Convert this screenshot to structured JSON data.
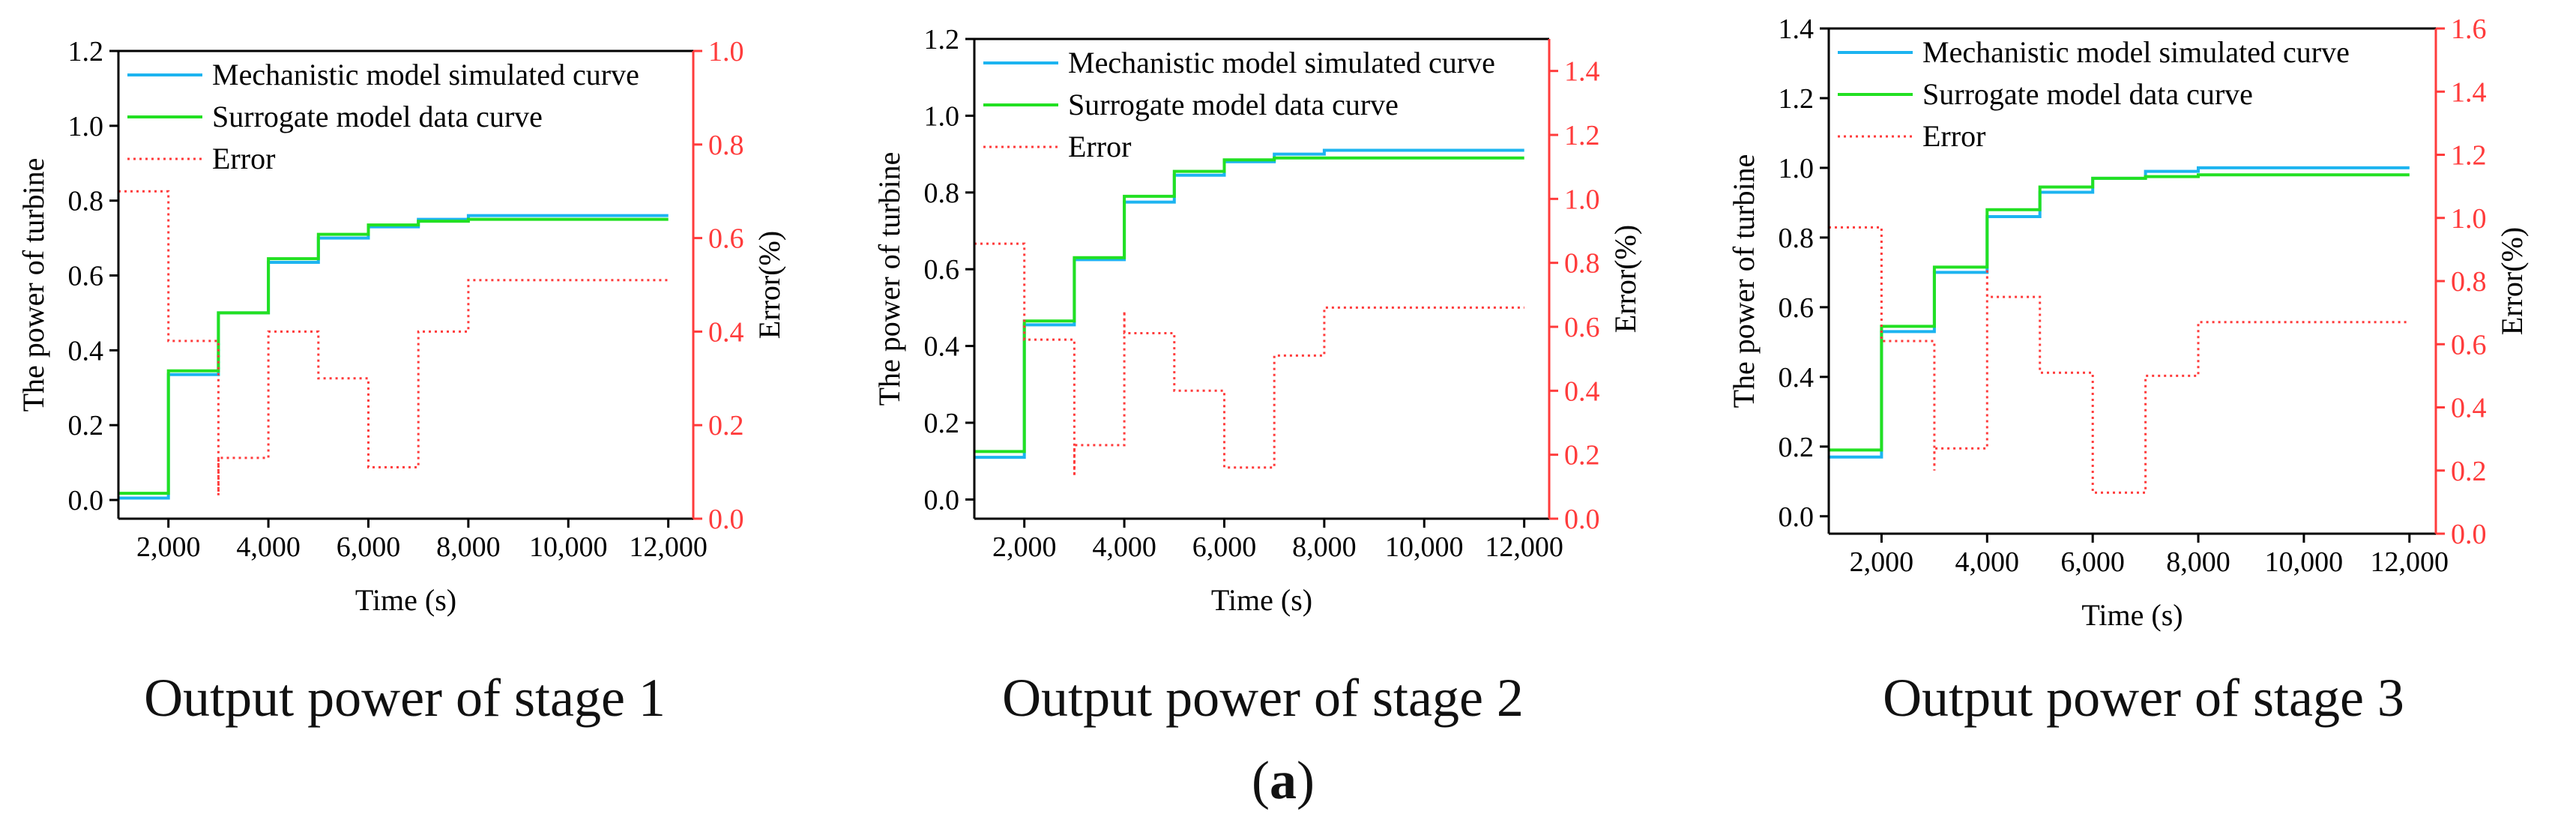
{
  "figure_label": {
    "open": "(",
    "letter": "a",
    "close": ")"
  },
  "colors": {
    "mechanistic": "#1cb4f0",
    "surrogate": "#22e022",
    "error": "#ff3b3b",
    "axis": "#000000",
    "right_axis": "#ff3b3b"
  },
  "chart_data": [
    {
      "type": "line",
      "title": "Output power of stage 1",
      "xlabel": "Time (s)",
      "ylabel": "The power of turbine",
      "y2label": "Error(%)",
      "xlim": [
        1000,
        12500
      ],
      "ylim": [
        -0.05,
        1.2
      ],
      "y2lim": [
        0.0,
        1.0
      ],
      "xticks": [
        2000,
        4000,
        6000,
        8000,
        10000,
        12000
      ],
      "xtick_labels": [
        "2,000",
        "4,000",
        "6,000",
        "8,000",
        "10,000",
        "12,000"
      ],
      "yticks": [
        0.0,
        0.2,
        0.4,
        0.6,
        0.8,
        1.0,
        1.2
      ],
      "ytick_labels": [
        "0.0",
        "0.2",
        "0.4",
        "0.6",
        "0.8",
        "1.0",
        "1.2"
      ],
      "y2ticks": [
        0.0,
        0.2,
        0.4,
        0.6,
        0.8,
        1.0
      ],
      "y2tick_labels": [
        "0.0",
        "0.2",
        "0.4",
        "0.6",
        "0.8",
        "1.0"
      ],
      "legend_position": "top-left",
      "series": [
        {
          "name": "Mechanistic model simulated curve",
          "style": "solid",
          "axis": "left",
          "x": [
            1000,
            2000,
            3000,
            4000,
            5000,
            6000,
            7000,
            8000,
            12000
          ],
          "values": [
            0.005,
            0.335,
            0.5,
            0.635,
            0.7,
            0.73,
            0.75,
            0.76,
            0.76
          ]
        },
        {
          "name": "Surrogate model data curve",
          "style": "solid",
          "axis": "left",
          "x": [
            1000,
            2000,
            3000,
            4000,
            5000,
            6000,
            7000,
            8000,
            12000
          ],
          "values": [
            0.018,
            0.345,
            0.5,
            0.645,
            0.71,
            0.735,
            0.745,
            0.75,
            0.75
          ]
        },
        {
          "name": "Error",
          "style": "dotted",
          "axis": "right",
          "x": [
            1000,
            2000,
            3000,
            3001,
            4000,
            5000,
            6000,
            7000,
            8000,
            12000
          ],
          "values": [
            0.7,
            0.38,
            0.05,
            0.13,
            0.4,
            0.3,
            0.11,
            0.4,
            0.51,
            0.51
          ]
        }
      ]
    },
    {
      "type": "line",
      "title": "Output power of stage 2",
      "xlabel": "Time (s)",
      "ylabel": "The power of turbine",
      "y2label": "Error(%)",
      "xlim": [
        1000,
        12500
      ],
      "ylim": [
        -0.05,
        1.2
      ],
      "y2lim": [
        0.0,
        1.5
      ],
      "xticks": [
        2000,
        4000,
        6000,
        8000,
        10000,
        12000
      ],
      "xtick_labels": [
        "2,000",
        "4,000",
        "6,000",
        "8,000",
        "10,000",
        "12,000"
      ],
      "yticks": [
        0.0,
        0.2,
        0.4,
        0.6,
        0.8,
        1.0,
        1.2
      ],
      "ytick_labels": [
        "0.0",
        "0.2",
        "0.4",
        "0.6",
        "0.8",
        "1.0",
        "1.2"
      ],
      "y2ticks": [
        0.0,
        0.2,
        0.4,
        0.6,
        0.8,
        1.0,
        1.2,
        1.4
      ],
      "y2tick_labels": [
        "0.0",
        "0.2",
        "0.4",
        "0.6",
        "0.8",
        "1.0",
        "1.2",
        "1.4"
      ],
      "legend_position": "top-left",
      "series": [
        {
          "name": "Mechanistic model simulated curve",
          "style": "solid",
          "axis": "left",
          "x": [
            1000,
            2000,
            3000,
            4000,
            5000,
            6000,
            7000,
            8000,
            12000
          ],
          "values": [
            0.11,
            0.455,
            0.625,
            0.775,
            0.845,
            0.88,
            0.9,
            0.91,
            0.91
          ]
        },
        {
          "name": "Surrogate model data curve",
          "style": "solid",
          "axis": "left",
          "x": [
            1000,
            2000,
            3000,
            4000,
            5000,
            6000,
            7000,
            8000,
            12000
          ],
          "values": [
            0.125,
            0.465,
            0.63,
            0.79,
            0.855,
            0.885,
            0.89,
            0.89,
            0.89
          ]
        },
        {
          "name": "Error",
          "style": "dotted",
          "axis": "right",
          "x": [
            1000,
            2000,
            3000,
            3001,
            4000,
            4001,
            5000,
            6000,
            7000,
            8000,
            12000
          ],
          "values": [
            0.86,
            0.56,
            0.14,
            0.23,
            0.65,
            0.58,
            0.4,
            0.16,
            0.51,
            0.66,
            0.66
          ]
        }
      ]
    },
    {
      "type": "line",
      "title": "Output power of stage 3",
      "xlabel": "Time (s)",
      "ylabel": "The power of turbine",
      "y2label": "Error(%)",
      "xlim": [
        1000,
        12500
      ],
      "ylim": [
        -0.05,
        1.4
      ],
      "y2lim": [
        0.0,
        1.6
      ],
      "xticks": [
        2000,
        4000,
        6000,
        8000,
        10000,
        12000
      ],
      "xtick_labels": [
        "2,000",
        "4,000",
        "6,000",
        "8,000",
        "10,000",
        "12,000"
      ],
      "yticks": [
        0.0,
        0.2,
        0.4,
        0.6,
        0.8,
        1.0,
        1.2,
        1.4
      ],
      "ytick_labels": [
        "0.0",
        "0.2",
        "0.4",
        "0.6",
        "0.8",
        "1.0",
        "1.2",
        "1.4"
      ],
      "y2ticks": [
        0.0,
        0.2,
        0.4,
        0.6,
        0.8,
        1.0,
        1.2,
        1.4,
        1.6
      ],
      "y2tick_labels": [
        "0.0",
        "0.2",
        "0.4",
        "0.6",
        "0.8",
        "1.0",
        "1.2",
        "1.4",
        "1.6"
      ],
      "legend_position": "top-left",
      "series": [
        {
          "name": "Mechanistic model simulated curve",
          "style": "solid",
          "axis": "left",
          "x": [
            1000,
            2000,
            3000,
            4000,
            5000,
            6000,
            7000,
            8000,
            12000
          ],
          "values": [
            0.17,
            0.53,
            0.7,
            0.86,
            0.93,
            0.97,
            0.99,
            1.0,
            1.0
          ]
        },
        {
          "name": "Surrogate model data curve",
          "style": "solid",
          "axis": "left",
          "x": [
            1000,
            2000,
            3000,
            4000,
            5000,
            6000,
            7000,
            8000,
            12000
          ],
          "values": [
            0.19,
            0.545,
            0.715,
            0.88,
            0.945,
            0.97,
            0.975,
            0.98,
            0.98
          ]
        },
        {
          "name": "Error",
          "style": "dotted",
          "axis": "right",
          "x": [
            1000,
            2000,
            3000,
            3001,
            4000,
            4001,
            5000,
            6000,
            7000,
            8000,
            12000
          ],
          "values": [
            0.97,
            0.61,
            0.2,
            0.27,
            0.84,
            0.75,
            0.51,
            0.13,
            0.5,
            0.67,
            0.67
          ]
        }
      ]
    }
  ]
}
